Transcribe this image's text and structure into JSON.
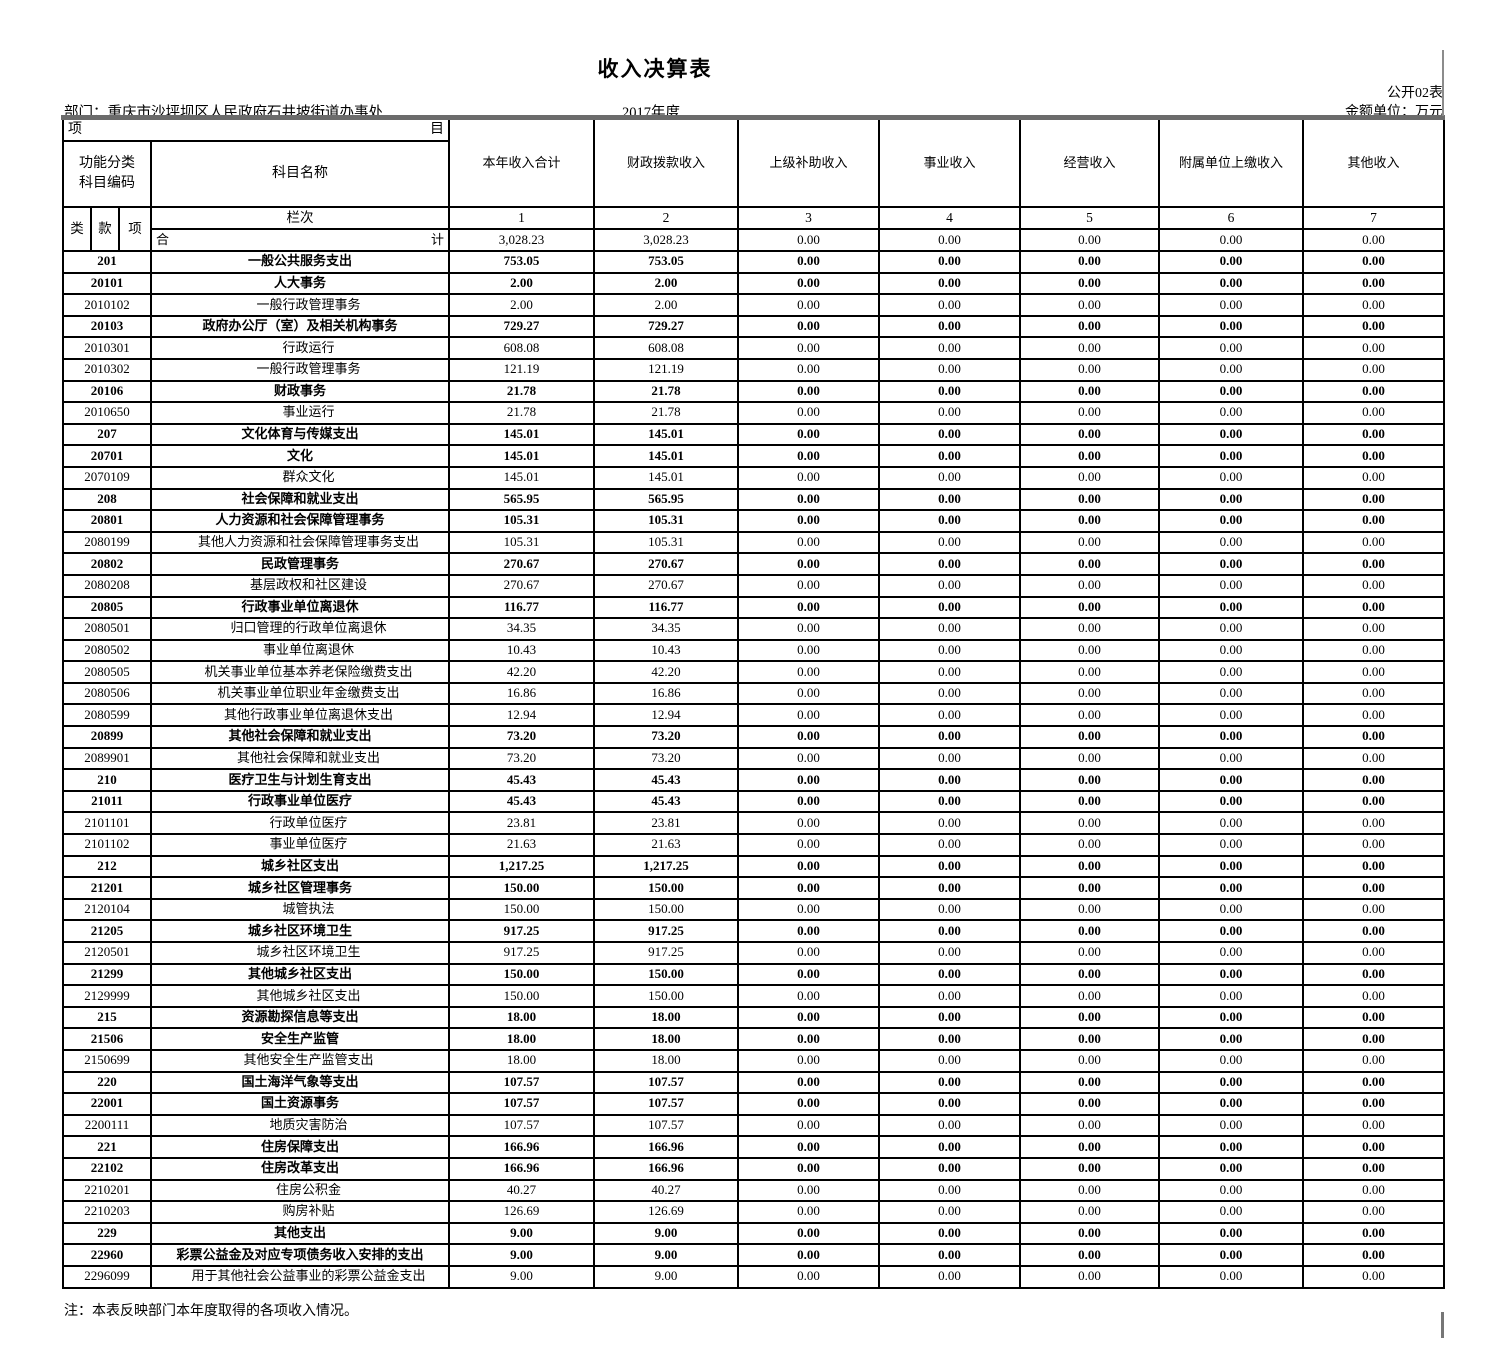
{
  "page": {
    "title": "收入决算表",
    "form_code": "公开02表",
    "department": "部门：重庆市沙坪坝区人民政府石井坡街道办事处",
    "year": "2017年度",
    "unit": "金额单位：万元",
    "note": "注：本表反映部门本年度取得的各项收入情况。"
  },
  "table": {
    "corner": {
      "left": "项",
      "right": "目"
    },
    "code_header": [
      "功能分类",
      "科目编码"
    ],
    "code_sub": [
      "类",
      "款",
      "项"
    ],
    "name_header": "科目名称",
    "columns": [
      "本年收入合计",
      "财政拨款收入",
      "上级补助收入",
      "事业收入",
      "经营收入",
      "附属单位上缴收入",
      "其他收入"
    ],
    "lanci_label": "栏次",
    "col_numbers": [
      "1",
      "2",
      "3",
      "4",
      "5",
      "6",
      "7"
    ],
    "total_label": {
      "left": "合",
      "right": "计"
    },
    "total_values": [
      "3,028.23",
      "3,028.23",
      "0.00",
      "0.00",
      "0.00",
      "0.00",
      "0.00"
    ],
    "rows": [
      {
        "code": "201",
        "name": "一般公共服务支出",
        "bold": true,
        "values": [
          "753.05",
          "753.05",
          "0.00",
          "0.00",
          "0.00",
          "0.00",
          "0.00"
        ]
      },
      {
        "code": "20101",
        "name": "人大事务",
        "bold": true,
        "values": [
          "2.00",
          "2.00",
          "0.00",
          "0.00",
          "0.00",
          "0.00",
          "0.00"
        ]
      },
      {
        "code": "2010102",
        "name": "一般行政管理事务",
        "bold": false,
        "values": [
          "2.00",
          "2.00",
          "0.00",
          "0.00",
          "0.00",
          "0.00",
          "0.00"
        ]
      },
      {
        "code": "20103",
        "name": "政府办公厅（室）及相关机构事务",
        "bold": true,
        "values": [
          "729.27",
          "729.27",
          "0.00",
          "0.00",
          "0.00",
          "0.00",
          "0.00"
        ]
      },
      {
        "code": "2010301",
        "name": "行政运行",
        "bold": false,
        "values": [
          "608.08",
          "608.08",
          "0.00",
          "0.00",
          "0.00",
          "0.00",
          "0.00"
        ]
      },
      {
        "code": "2010302",
        "name": "一般行政管理事务",
        "bold": false,
        "values": [
          "121.19",
          "121.19",
          "0.00",
          "0.00",
          "0.00",
          "0.00",
          "0.00"
        ]
      },
      {
        "code": "20106",
        "name": "财政事务",
        "bold": true,
        "values": [
          "21.78",
          "21.78",
          "0.00",
          "0.00",
          "0.00",
          "0.00",
          "0.00"
        ]
      },
      {
        "code": "2010650",
        "name": "事业运行",
        "bold": false,
        "values": [
          "21.78",
          "21.78",
          "0.00",
          "0.00",
          "0.00",
          "0.00",
          "0.00"
        ]
      },
      {
        "code": "207",
        "name": "文化体育与传媒支出",
        "bold": true,
        "values": [
          "145.01",
          "145.01",
          "0.00",
          "0.00",
          "0.00",
          "0.00",
          "0.00"
        ]
      },
      {
        "code": "20701",
        "name": "文化",
        "bold": true,
        "values": [
          "145.01",
          "145.01",
          "0.00",
          "0.00",
          "0.00",
          "0.00",
          "0.00"
        ]
      },
      {
        "code": "2070109",
        "name": "群众文化",
        "bold": false,
        "values": [
          "145.01",
          "145.01",
          "0.00",
          "0.00",
          "0.00",
          "0.00",
          "0.00"
        ]
      },
      {
        "code": "208",
        "name": "社会保障和就业支出",
        "bold": true,
        "values": [
          "565.95",
          "565.95",
          "0.00",
          "0.00",
          "0.00",
          "0.00",
          "0.00"
        ]
      },
      {
        "code": "20801",
        "name": "人力资源和社会保障管理事务",
        "bold": true,
        "values": [
          "105.31",
          "105.31",
          "0.00",
          "0.00",
          "0.00",
          "0.00",
          "0.00"
        ]
      },
      {
        "code": "2080199",
        "name": "其他人力资源和社会保障管理事务支出",
        "bold": false,
        "values": [
          "105.31",
          "105.31",
          "0.00",
          "0.00",
          "0.00",
          "0.00",
          "0.00"
        ]
      },
      {
        "code": "20802",
        "name": "民政管理事务",
        "bold": true,
        "values": [
          "270.67",
          "270.67",
          "0.00",
          "0.00",
          "0.00",
          "0.00",
          "0.00"
        ]
      },
      {
        "code": "2080208",
        "name": "基层政权和社区建设",
        "bold": false,
        "values": [
          "270.67",
          "270.67",
          "0.00",
          "0.00",
          "0.00",
          "0.00",
          "0.00"
        ]
      },
      {
        "code": "20805",
        "name": "行政事业单位离退休",
        "bold": true,
        "values": [
          "116.77",
          "116.77",
          "0.00",
          "0.00",
          "0.00",
          "0.00",
          "0.00"
        ]
      },
      {
        "code": "2080501",
        "name": "归口管理的行政单位离退休",
        "bold": false,
        "values": [
          "34.35",
          "34.35",
          "0.00",
          "0.00",
          "0.00",
          "0.00",
          "0.00"
        ]
      },
      {
        "code": "2080502",
        "name": "事业单位离退休",
        "bold": false,
        "values": [
          "10.43",
          "10.43",
          "0.00",
          "0.00",
          "0.00",
          "0.00",
          "0.00"
        ]
      },
      {
        "code": "2080505",
        "name": "机关事业单位基本养老保险缴费支出",
        "bold": false,
        "values": [
          "42.20",
          "42.20",
          "0.00",
          "0.00",
          "0.00",
          "0.00",
          "0.00"
        ]
      },
      {
        "code": "2080506",
        "name": "机关事业单位职业年金缴费支出",
        "bold": false,
        "values": [
          "16.86",
          "16.86",
          "0.00",
          "0.00",
          "0.00",
          "0.00",
          "0.00"
        ]
      },
      {
        "code": "2080599",
        "name": "其他行政事业单位离退休支出",
        "bold": false,
        "values": [
          "12.94",
          "12.94",
          "0.00",
          "0.00",
          "0.00",
          "0.00",
          "0.00"
        ]
      },
      {
        "code": "20899",
        "name": "其他社会保障和就业支出",
        "bold": true,
        "values": [
          "73.20",
          "73.20",
          "0.00",
          "0.00",
          "0.00",
          "0.00",
          "0.00"
        ]
      },
      {
        "code": "2089901",
        "name": "其他社会保障和就业支出",
        "bold": false,
        "values": [
          "73.20",
          "73.20",
          "0.00",
          "0.00",
          "0.00",
          "0.00",
          "0.00"
        ]
      },
      {
        "code": "210",
        "name": "医疗卫生与计划生育支出",
        "bold": true,
        "values": [
          "45.43",
          "45.43",
          "0.00",
          "0.00",
          "0.00",
          "0.00",
          "0.00"
        ]
      },
      {
        "code": "21011",
        "name": "行政事业单位医疗",
        "bold": true,
        "values": [
          "45.43",
          "45.43",
          "0.00",
          "0.00",
          "0.00",
          "0.00",
          "0.00"
        ]
      },
      {
        "code": "2101101",
        "name": "行政单位医疗",
        "bold": false,
        "values": [
          "23.81",
          "23.81",
          "0.00",
          "0.00",
          "0.00",
          "0.00",
          "0.00"
        ]
      },
      {
        "code": "2101102",
        "name": "事业单位医疗",
        "bold": false,
        "values": [
          "21.63",
          "21.63",
          "0.00",
          "0.00",
          "0.00",
          "0.00",
          "0.00"
        ]
      },
      {
        "code": "212",
        "name": "城乡社区支出",
        "bold": true,
        "values": [
          "1,217.25",
          "1,217.25",
          "0.00",
          "0.00",
          "0.00",
          "0.00",
          "0.00"
        ]
      },
      {
        "code": "21201",
        "name": "城乡社区管理事务",
        "bold": true,
        "values": [
          "150.00",
          "150.00",
          "0.00",
          "0.00",
          "0.00",
          "0.00",
          "0.00"
        ]
      },
      {
        "code": "2120104",
        "name": "城管执法",
        "bold": false,
        "values": [
          "150.00",
          "150.00",
          "0.00",
          "0.00",
          "0.00",
          "0.00",
          "0.00"
        ]
      },
      {
        "code": "21205",
        "name": "城乡社区环境卫生",
        "bold": true,
        "values": [
          "917.25",
          "917.25",
          "0.00",
          "0.00",
          "0.00",
          "0.00",
          "0.00"
        ]
      },
      {
        "code": "2120501",
        "name": "城乡社区环境卫生",
        "bold": false,
        "values": [
          "917.25",
          "917.25",
          "0.00",
          "0.00",
          "0.00",
          "0.00",
          "0.00"
        ]
      },
      {
        "code": "21299",
        "name": "其他城乡社区支出",
        "bold": true,
        "values": [
          "150.00",
          "150.00",
          "0.00",
          "0.00",
          "0.00",
          "0.00",
          "0.00"
        ]
      },
      {
        "code": "2129999",
        "name": "其他城乡社区支出",
        "bold": false,
        "values": [
          "150.00",
          "150.00",
          "0.00",
          "0.00",
          "0.00",
          "0.00",
          "0.00"
        ]
      },
      {
        "code": "215",
        "name": "资源勘探信息等支出",
        "bold": true,
        "values": [
          "18.00",
          "18.00",
          "0.00",
          "0.00",
          "0.00",
          "0.00",
          "0.00"
        ]
      },
      {
        "code": "21506",
        "name": "安全生产监管",
        "bold": true,
        "values": [
          "18.00",
          "18.00",
          "0.00",
          "0.00",
          "0.00",
          "0.00",
          "0.00"
        ]
      },
      {
        "code": "2150699",
        "name": "其他安全生产监管支出",
        "bold": false,
        "values": [
          "18.00",
          "18.00",
          "0.00",
          "0.00",
          "0.00",
          "0.00",
          "0.00"
        ]
      },
      {
        "code": "220",
        "name": "国土海洋气象等支出",
        "bold": true,
        "values": [
          "107.57",
          "107.57",
          "0.00",
          "0.00",
          "0.00",
          "0.00",
          "0.00"
        ]
      },
      {
        "code": "22001",
        "name": "国土资源事务",
        "bold": true,
        "values": [
          "107.57",
          "107.57",
          "0.00",
          "0.00",
          "0.00",
          "0.00",
          "0.00"
        ]
      },
      {
        "code": "2200111",
        "name": "地质灾害防治",
        "bold": false,
        "values": [
          "107.57",
          "107.57",
          "0.00",
          "0.00",
          "0.00",
          "0.00",
          "0.00"
        ]
      },
      {
        "code": "221",
        "name": "住房保障支出",
        "bold": true,
        "values": [
          "166.96",
          "166.96",
          "0.00",
          "0.00",
          "0.00",
          "0.00",
          "0.00"
        ]
      },
      {
        "code": "22102",
        "name": "住房改革支出",
        "bold": true,
        "values": [
          "166.96",
          "166.96",
          "0.00",
          "0.00",
          "0.00",
          "0.00",
          "0.00"
        ]
      },
      {
        "code": "2210201",
        "name": "住房公积金",
        "bold": false,
        "values": [
          "40.27",
          "40.27",
          "0.00",
          "0.00",
          "0.00",
          "0.00",
          "0.00"
        ]
      },
      {
        "code": "2210203",
        "name": "购房补贴",
        "bold": false,
        "values": [
          "126.69",
          "126.69",
          "0.00",
          "0.00",
          "0.00",
          "0.00",
          "0.00"
        ]
      },
      {
        "code": "229",
        "name": "其他支出",
        "bold": true,
        "values": [
          "9.00",
          "9.00",
          "0.00",
          "0.00",
          "0.00",
          "0.00",
          "0.00"
        ]
      },
      {
        "code": "22960",
        "name": "彩票公益金及对应专项债务收入安排的支出",
        "bold": true,
        "values": [
          "9.00",
          "9.00",
          "0.00",
          "0.00",
          "0.00",
          "0.00",
          "0.00"
        ]
      },
      {
        "code": "2296099",
        "name": "用于其他社会公益事业的彩票公益金支出",
        "bold": false,
        "values": [
          "9.00",
          "9.00",
          "0.00",
          "0.00",
          "0.00",
          "0.00",
          "0.00"
        ]
      }
    ]
  }
}
